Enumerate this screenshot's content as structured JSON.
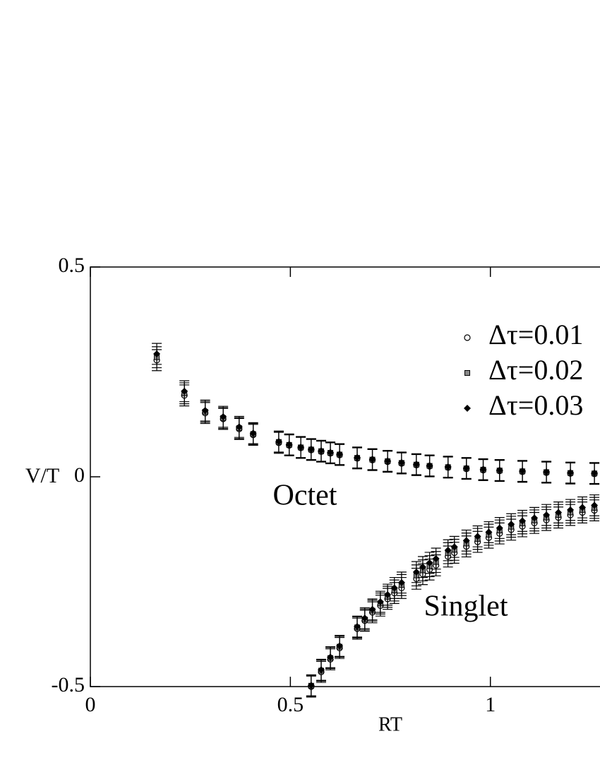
{
  "chart_data": {
    "type": "scatter",
    "x_label": "RT",
    "y_label": "V/T",
    "annotations": [
      "Octet",
      "Singlet"
    ],
    "xlim": [
      0,
      1.274
    ],
    "ylim": [
      -0.5,
      0.5
    ],
    "xticks": [
      0,
      0.5,
      1
    ],
    "yticks": [
      -0.5,
      0,
      0.5
    ],
    "legend": "upper right",
    "x": [
      0.166,
      0.235,
      0.287,
      0.332,
      0.372,
      0.407,
      0.471,
      0.497,
      0.526,
      0.552,
      0.577,
      0.6,
      0.623,
      0.667,
      0.705,
      0.743,
      0.778,
      0.815,
      0.848,
      0.894,
      0.94,
      0.982,
      1.023,
      1.08,
      1.14,
      1.2,
      1.26,
      0.552,
      0.577,
      0.6,
      0.623,
      0.667,
      0.686,
      0.705,
      0.725,
      0.743,
      0.76,
      0.778,
      0.815,
      0.831,
      0.848,
      0.864,
      0.894,
      0.91,
      0.94,
      0.968,
      0.996,
      1.023,
      1.052,
      1.08,
      1.11,
      1.14,
      1.17,
      1.2,
      1.23,
      1.26
    ],
    "series": [
      {
        "name": "Δτ=0.01",
        "marker": "circle",
        "color": "#000000",
        "error": 0.025,
        "values": [
          0.278,
          0.194,
          0.152,
          0.138,
          0.114,
          0.1,
          0.081,
          0.075,
          0.069,
          0.064,
          0.06,
          0.056,
          0.052,
          0.044,
          0.04,
          0.036,
          0.032,
          0.028,
          0.025,
          0.022,
          0.019,
          0.016,
          0.014,
          0.012,
          0.01,
          0.008,
          0.007,
          -0.5,
          -0.465,
          -0.435,
          -0.408,
          -0.362,
          -0.343,
          -0.323,
          -0.307,
          -0.291,
          -0.277,
          -0.265,
          -0.243,
          -0.232,
          -0.221,
          -0.211,
          -0.19,
          -0.181,
          -0.166,
          -0.155,
          -0.145,
          -0.135,
          -0.126,
          -0.118,
          -0.11,
          -0.103,
          -0.097,
          -0.091,
          -0.085,
          -0.08
        ]
      },
      {
        "name": "Δτ=0.02",
        "marker": "square",
        "color": "#888888",
        "error": 0.025,
        "values": [
          0.285,
          0.199,
          0.155,
          0.14,
          0.116,
          0.102,
          0.083,
          0.076,
          0.07,
          0.065,
          0.061,
          0.057,
          0.053,
          0.045,
          0.041,
          0.037,
          0.033,
          0.029,
          0.026,
          0.023,
          0.02,
          0.017,
          0.015,
          0.013,
          0.011,
          0.009,
          0.008,
          -0.498,
          -0.462,
          -0.432,
          -0.405,
          -0.359,
          -0.34,
          -0.319,
          -0.302,
          -0.286,
          -0.271,
          -0.258,
          -0.235,
          -0.223,
          -0.213,
          -0.203,
          -0.182,
          -0.174,
          -0.159,
          -0.148,
          -0.138,
          -0.128,
          -0.119,
          -0.111,
          -0.104,
          -0.097,
          -0.091,
          -0.085,
          -0.079,
          -0.074
        ]
      },
      {
        "name": "Δτ=0.03",
        "marker": "diamond",
        "color": "#000000",
        "error": 0.025,
        "values": [
          0.293,
          0.204,
          0.158,
          0.143,
          0.119,
          0.104,
          0.084,
          0.077,
          0.071,
          0.066,
          0.062,
          0.058,
          0.054,
          0.046,
          0.042,
          0.038,
          0.034,
          0.03,
          0.027,
          0.024,
          0.021,
          0.018,
          0.016,
          0.014,
          0.012,
          0.01,
          0.009,
          -0.497,
          -0.46,
          -0.43,
          -0.403,
          -0.357,
          -0.337,
          -0.316,
          -0.298,
          -0.281,
          -0.265,
          -0.252,
          -0.227,
          -0.215,
          -0.205,
          -0.195,
          -0.175,
          -0.167,
          -0.152,
          -0.142,
          -0.132,
          -0.122,
          -0.113,
          -0.105,
          -0.098,
          -0.091,
          -0.085,
          -0.079,
          -0.073,
          -0.068
        ]
      }
    ]
  }
}
